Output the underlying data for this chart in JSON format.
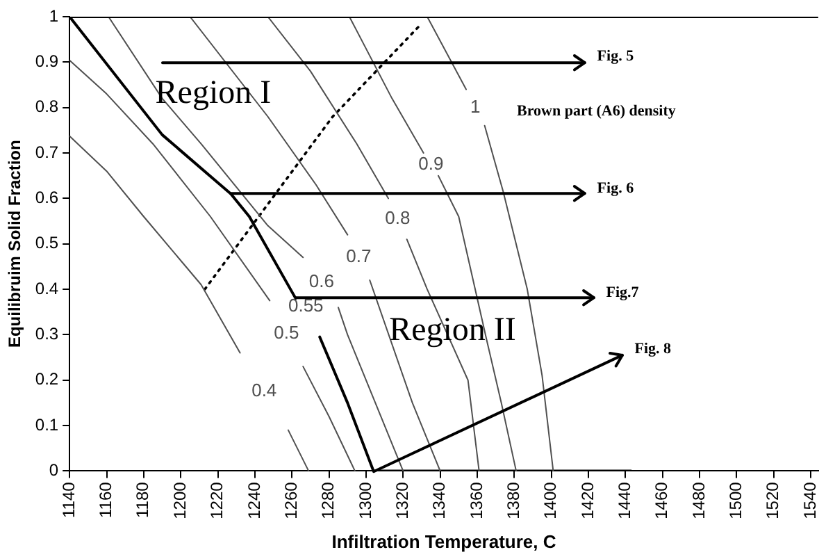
{
  "chart_data": {
    "type": "line",
    "xlabel": "Infiltration Temperature, C",
    "ylabel": "Equilibruim Solid Fraction",
    "xlim": [
      1140,
      1544
    ],
    "xticks": [
      1140,
      1160,
      1180,
      1200,
      1220,
      1240,
      1260,
      1280,
      1300,
      1320,
      1340,
      1360,
      1380,
      1400,
      1420,
      1440,
      1460,
      1480,
      1500,
      1520,
      1540
    ],
    "ylim": [
      0,
      1
    ],
    "yticks": [
      0,
      0.1,
      0.2,
      0.3,
      0.4,
      0.5,
      0.6,
      0.7,
      0.8,
      0.9,
      1
    ],
    "grid": false,
    "legend": false,
    "marker": "none",
    "series": [
      {
        "name": "0.4",
        "color": "#505050",
        "x": [
          1140,
          1160,
          1180,
          1211,
          1232,
          1245,
          1258,
          1269
        ],
        "values": [
          0.737,
          0.66,
          0.56,
          0.41,
          0.26,
          null,
          0.09,
          0
        ]
      },
      {
        "name": "0.5",
        "color": "#505050",
        "x": [
          1140,
          1160,
          1185,
          1216,
          1248,
          1257,
          1266,
          1280,
          1294
        ],
        "values": [
          0.904,
          0.83,
          0.72,
          0.56,
          0.375,
          null,
          0.23,
          0.12,
          0
        ]
      },
      {
        "name": "0.6",
        "color": "#505050",
        "x": [
          1161,
          1190,
          1211,
          1247,
          1266,
          1276,
          1285,
          1290,
          1305,
          1320
        ],
        "values": [
          1,
          0.82,
          0.72,
          0.54,
          0.47,
          null,
          0.36,
          0.3,
          0.15,
          0
        ]
      },
      {
        "name": "0.7",
        "color": "#505050",
        "x": [
          1205,
          1247,
          1273,
          1290,
          1296,
          1302,
          1325,
          1340
        ],
        "values": [
          1,
          0.78,
          0.63,
          0.52,
          null,
          0.42,
          0.15,
          0
        ]
      },
      {
        "name": "0.8",
        "color": "#505050",
        "x": [
          1247,
          1270,
          1295,
          1312,
          1317,
          1322,
          1333,
          1355,
          1361
        ],
        "values": [
          1,
          0.88,
          0.72,
          0.6,
          null,
          0.51,
          0.4,
          0.2,
          0
        ]
      },
      {
        "name": "0.9",
        "color": "#505050",
        "x": [
          1291,
          1314,
          1331,
          1335,
          1339,
          1350,
          1365,
          1373,
          1381
        ],
        "values": [
          1,
          0.82,
          0.7,
          null,
          0.65,
          0.56,
          0.29,
          0.15,
          0
        ]
      },
      {
        "name": "1",
        "color": "#505050",
        "x": [
          1333,
          1354,
          1359,
          1364,
          1374,
          1387,
          1395,
          1401
        ],
        "values": [
          1,
          0.84,
          null,
          0.76,
          0.615,
          0.4,
          0.21,
          0
        ]
      },
      {
        "name": "0.55",
        "color": "#000000",
        "x": [
          1275,
          1290,
          1304,
          1443
        ],
        "values": [
          0.295,
          0.15,
          0,
          0
        ]
      },
      {
        "color": "#000000",
        "x": [
          1140,
          1190,
          1227,
          1237,
          1262
        ],
        "values": [
          1,
          0.74,
          0.61,
          0.56,
          0.38
        ]
      },
      {
        "color": "#000000",
        "line_style": "dotted",
        "x": [
          1213,
          1282,
          1330
        ],
        "values": [
          0.4,
          0.78,
          0.985
        ]
      }
    ],
    "annotations": [
      "Region I",
      "Region II",
      "Brown part (A6) density",
      "Fig. 5",
      "Fig. 6",
      {
        "text": "Fig.7",
        "x": 1262,
        "y": 0.38
      },
      {
        "text": "Fig. 8",
        "x": 1304,
        "y": 0
      }
    ]
  }
}
